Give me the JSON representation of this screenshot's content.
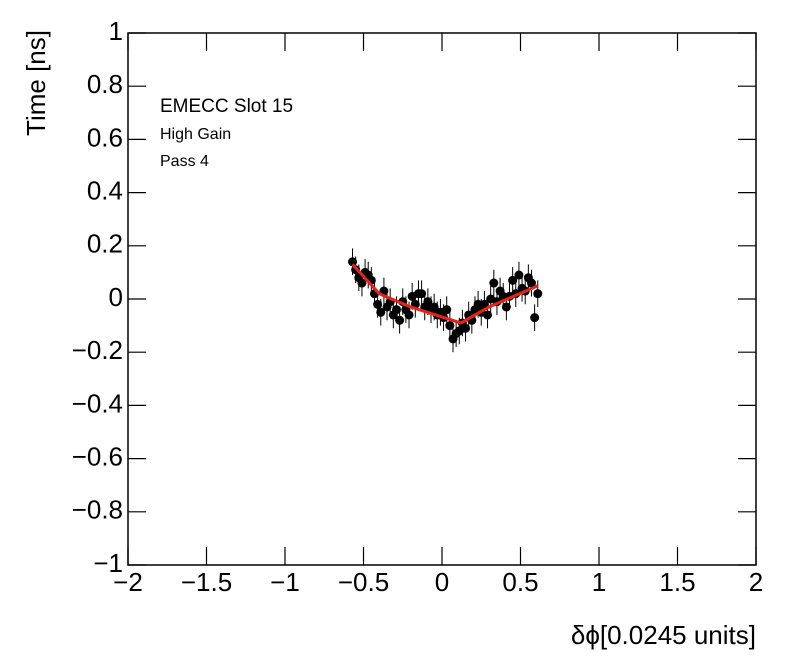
{
  "chart_data": {
    "type": "scatter",
    "annotations": [
      "EMECC Slot 15",
      "High Gain",
      "Pass 4"
    ],
    "x_label": "δϕ[0.0245 units]",
    "y_label": "Time [ns]",
    "xlim": [
      -2,
      2
    ],
    "ylim": [
      -1,
      1
    ],
    "xticks": [
      {
        "value": -2,
        "label": "−2"
      },
      {
        "value": -1.5,
        "label": "−1.5"
      },
      {
        "value": -1,
        "label": "−1"
      },
      {
        "value": -0.5,
        "label": "−0.5"
      },
      0,
      0.5,
      1,
      1.5,
      2
    ],
    "yticks": [
      {
        "value": -1,
        "label": "−1"
      },
      {
        "value": -0.8,
        "label": "−0.8"
      },
      {
        "value": -0.6,
        "label": "−0.6"
      },
      {
        "value": -0.4,
        "label": "−0.4"
      },
      {
        "value": -0.2,
        "label": "−0.2"
      },
      0,
      0.2,
      0.4,
      0.6,
      0.8,
      1
    ],
    "series": [
      {
        "color": "#000000",
        "x": [
          -0.57,
          -0.55,
          -0.53,
          -0.51,
          -0.49,
          -0.47,
          -0.45,
          -0.43,
          -0.41,
          -0.39,
          -0.37,
          -0.35,
          -0.33,
          -0.31,
          -0.29,
          -0.27,
          -0.25,
          -0.23,
          -0.21,
          -0.19,
          -0.17,
          -0.15,
          -0.13,
          -0.11,
          -0.09,
          -0.07,
          -0.05,
          -0.03,
          -0.01,
          0.01,
          0.03,
          0.05,
          0.07,
          0.09,
          0.11,
          0.13,
          0.15,
          0.17,
          0.19,
          0.21,
          0.23,
          0.25,
          0.27,
          0.29,
          0.31,
          0.33,
          0.35,
          0.37,
          0.39,
          0.41,
          0.43,
          0.45,
          0.47,
          0.49,
          0.51,
          0.53,
          0.55,
          0.57,
          0.59,
          0.61
        ],
        "values": [
          0.14,
          0.11,
          0.08,
          0.06,
          0.1,
          0.09,
          0.07,
          0.02,
          -0.02,
          -0.05,
          0.03,
          -0.03,
          -0.01,
          -0.06,
          -0.04,
          -0.08,
          -0.01,
          -0.04,
          -0.06,
          0.01,
          -0.02,
          0.02,
          0.02,
          -0.03,
          -0.01,
          -0.04,
          -0.03,
          -0.06,
          -0.05,
          -0.07,
          -0.04,
          -0.1,
          -0.15,
          -0.13,
          -0.12,
          -0.09,
          -0.11,
          -0.06,
          -0.08,
          -0.04,
          -0.02,
          -0.05,
          -0.02,
          -0.06,
          0.0,
          0.06,
          -0.01,
          0.03,
          0.01,
          -0.03,
          0.01,
          0.07,
          0.02,
          0.09,
          0.04,
          0.03,
          0.08,
          0.06,
          -0.07,
          0.02
        ],
        "errors": [
          0.05,
          0.05,
          0.05,
          0.05,
          0.05,
          0.05,
          0.05,
          0.05,
          0.05,
          0.05,
          0.05,
          0.05,
          0.05,
          0.05,
          0.05,
          0.05,
          0.05,
          0.05,
          0.05,
          0.05,
          0.05,
          0.05,
          0.05,
          0.05,
          0.05,
          0.05,
          0.05,
          0.05,
          0.05,
          0.05,
          0.05,
          0.05,
          0.05,
          0.05,
          0.05,
          0.05,
          0.05,
          0.05,
          0.05,
          0.05,
          0.05,
          0.05,
          0.05,
          0.05,
          0.05,
          0.05,
          0.05,
          0.05,
          0.05,
          0.05,
          0.05,
          0.05,
          0.05,
          0.05,
          0.05,
          0.05,
          0.05,
          0.05,
          0.05,
          0.05
        ]
      },
      {
        "type": "line",
        "color": "#e8211b",
        "x": [
          -0.57,
          -0.4,
          -0.2,
          0.12,
          0.3,
          0.61
        ],
        "values": [
          0.13,
          0.02,
          -0.03,
          -0.09,
          -0.03,
          0.05
        ]
      }
    ]
  }
}
